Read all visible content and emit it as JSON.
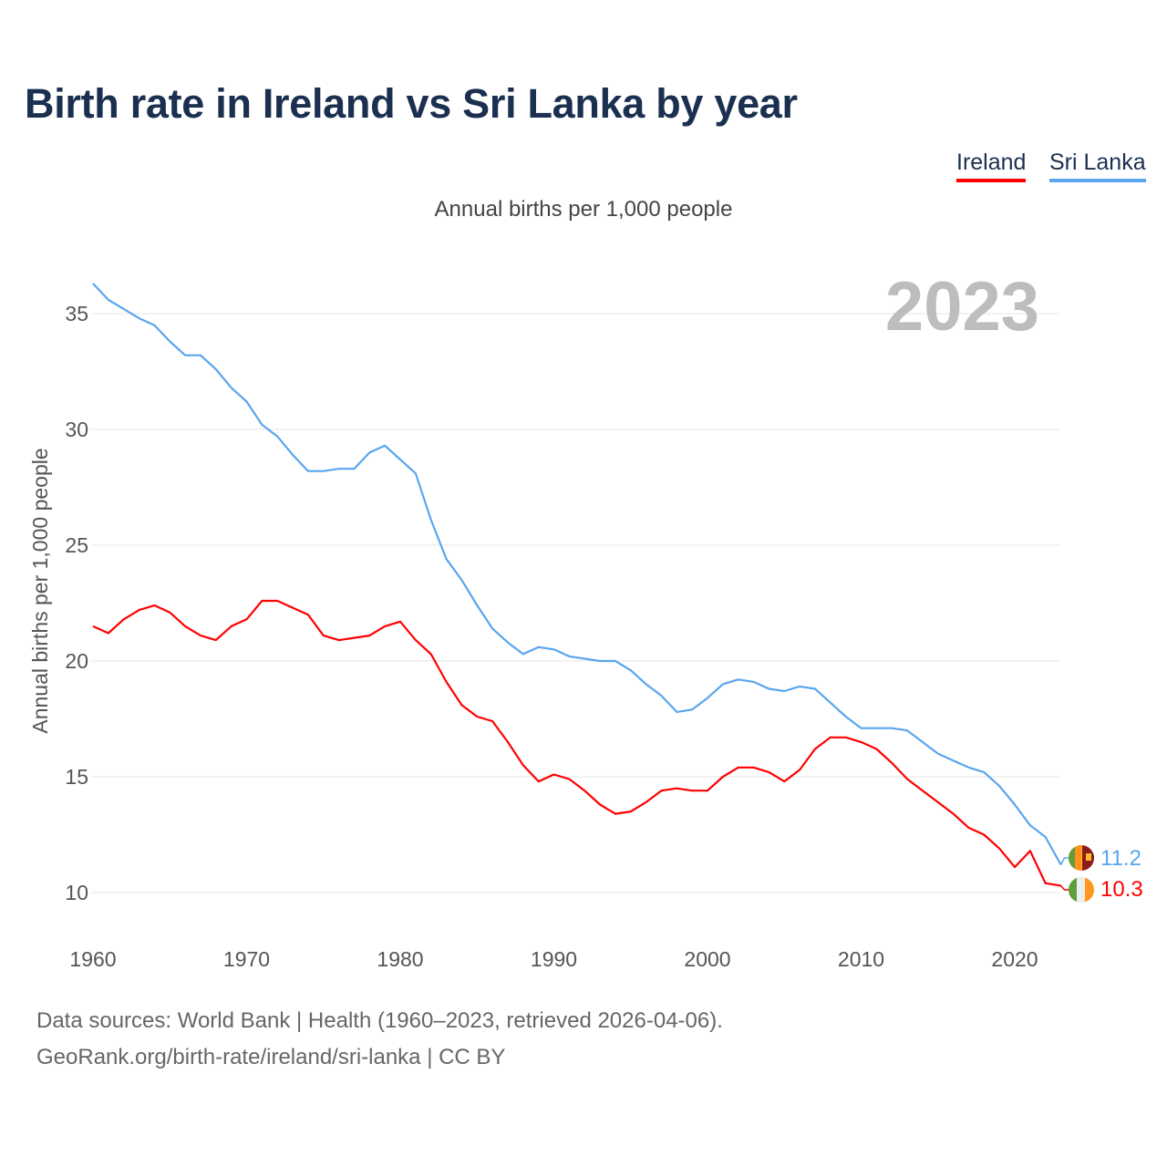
{
  "title": "Birth rate in Ireland vs Sri Lanka by year",
  "subtitle": "Annual births per 1,000 people",
  "legend": [
    {
      "label": "Ireland",
      "color": "#ff0000"
    },
    {
      "label": "Sri Lanka",
      "color": "#5aa5ee"
    }
  ],
  "footer": {
    "line1": "Data sources: World Bank | Health (1960–2023, retrieved 2026-04-06).",
    "line2": "GeoRank.org/birth-rate/ireland/sri-lanka | CC BY"
  },
  "chart_data": {
    "type": "line",
    "title": "Birth rate in Ireland vs Sri Lanka by year",
    "ylabel": "Annual births per 1,000 people",
    "xlabel": "",
    "year_watermark": "2023",
    "xlim": [
      1960,
      2023
    ],
    "ylim": [
      8.5,
      37
    ],
    "x_ticks": [
      "1960",
      "1970",
      "1980",
      "1990",
      "2000",
      "2010",
      "2020"
    ],
    "y_ticks": [
      "10",
      "15",
      "20",
      "25",
      "30",
      "35"
    ],
    "grid": true,
    "legend_position": "top-right",
    "x_start": 1960,
    "series": [
      {
        "name": "Ireland",
        "color": "#ff0000",
        "end_label": "10.3",
        "values": [
          21.5,
          21.2,
          21.8,
          22.2,
          22.4,
          22.1,
          21.5,
          21.1,
          20.9,
          21.5,
          21.8,
          22.6,
          22.6,
          22.3,
          22.0,
          21.1,
          20.9,
          21.0,
          21.1,
          21.5,
          21.7,
          20.9,
          20.3,
          19.1,
          18.1,
          17.6,
          17.4,
          16.5,
          15.5,
          14.8,
          15.1,
          14.9,
          14.4,
          13.8,
          13.4,
          13.5,
          13.9,
          14.4,
          14.5,
          14.4,
          14.4,
          15.0,
          15.4,
          15.4,
          15.2,
          14.8,
          15.3,
          16.2,
          16.7,
          16.7,
          16.5,
          16.2,
          15.6,
          14.9,
          14.4,
          13.9,
          13.4,
          12.8,
          12.5,
          11.9,
          11.1,
          11.8,
          10.4,
          10.3
        ]
      },
      {
        "name": "Sri Lanka",
        "color": "#5aa5ee",
        "end_label": "11.2",
        "values": [
          36.3,
          35.6,
          35.2,
          34.8,
          34.5,
          33.8,
          33.2,
          33.2,
          32.6,
          31.8,
          31.2,
          30.2,
          29.7,
          28.9,
          28.2,
          28.2,
          28.3,
          28.3,
          29.0,
          29.3,
          28.7,
          28.1,
          26.1,
          24.4,
          23.5,
          22.4,
          21.4,
          20.8,
          20.3,
          20.6,
          20.5,
          20.2,
          20.1,
          20.0,
          20.0,
          19.6,
          19.0,
          18.5,
          17.8,
          17.9,
          18.4,
          19.0,
          19.2,
          19.1,
          18.8,
          18.7,
          18.9,
          18.8,
          18.2,
          17.6,
          17.1,
          17.1,
          17.1,
          17.0,
          16.5,
          16.0,
          15.7,
          15.4,
          15.2,
          14.6,
          13.8,
          12.9,
          12.4,
          11.2
        ]
      }
    ]
  }
}
